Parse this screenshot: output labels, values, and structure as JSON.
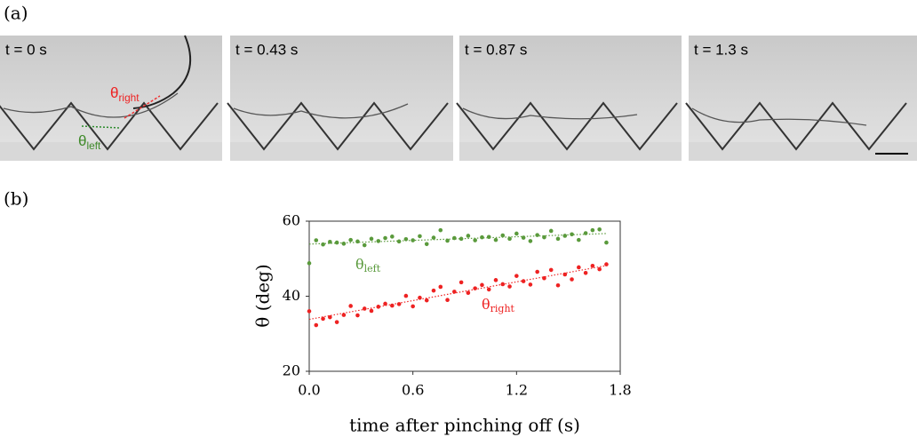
{
  "panel_a": {
    "label": "(a)",
    "frames": [
      "t = 0 s",
      "t = 0.43 s",
      "t = 0.87 s",
      "t = 1.3 s"
    ],
    "angle_right": {
      "symbol": "θ",
      "sub": "right"
    },
    "angle_left": {
      "symbol": "θ",
      "sub": "left"
    }
  },
  "panel_b": {
    "label": "(b)"
  },
  "chart_data": {
    "type": "scatter",
    "xlabel": "time after pinching off (s)",
    "ylabel": "θ (deg)",
    "xlim": [
      0,
      1.8
    ],
    "ylim": [
      20,
      60
    ],
    "xticks": [
      {
        "value": 0,
        "label": "0.0"
      },
      0.6,
      1.2,
      1.8
    ],
    "yticks": [
      20,
      40,
      60
    ],
    "trendline": true,
    "x": [
      0,
      0.04,
      0.08,
      0.12,
      0.16,
      0.2,
      0.24,
      0.28,
      0.32,
      0.36,
      0.4,
      0.44,
      0.48,
      0.52,
      0.56,
      0.6,
      0.64,
      0.68,
      0.72,
      0.76,
      0.8,
      0.84,
      0.88,
      0.92,
      0.96,
      1.0,
      1.04,
      1.08,
      1.12,
      1.16,
      1.2,
      1.24,
      1.28,
      1.32,
      1.36,
      1.4,
      1.44,
      1.48,
      1.52,
      1.56,
      1.6,
      1.64,
      1.68,
      1.72
    ],
    "series": [
      {
        "name": "θ",
        "sub": "left",
        "color": "#5a9a3c",
        "values": [
          48.8,
          54.9,
          53.8,
          54.5,
          54.3,
          54.0,
          55.0,
          54.6,
          53.6,
          55.3,
          54.7,
          55.5,
          55.9,
          54.6,
          55.2,
          54.9,
          56.0,
          53.9,
          55.6,
          57.6,
          54.8,
          55.5,
          55.3,
          56.1,
          54.9,
          55.7,
          55.8,
          55.0,
          56.2,
          55.3,
          56.7,
          55.6,
          54.7,
          56.3,
          55.7,
          57.4,
          55.3,
          56.1,
          56.5,
          55.0,
          56.8,
          57.6,
          57.8,
          54.3
        ]
      },
      {
        "name": "θ",
        "sub": "right",
        "color": "#ee2222",
        "values": [
          36.0,
          32.3,
          34.0,
          34.4,
          33.1,
          35.0,
          37.4,
          34.9,
          36.7,
          36.1,
          37.2,
          38.0,
          37.5,
          37.9,
          40.1,
          37.3,
          39.6,
          38.9,
          41.5,
          42.5,
          39.0,
          41.2,
          43.7,
          40.9,
          42.1,
          43.0,
          41.8,
          44.3,
          43.2,
          42.6,
          45.4,
          44.0,
          43.1,
          46.5,
          44.8,
          47.0,
          42.9,
          45.8,
          44.5,
          47.7,
          46.2,
          48.1,
          47.2,
          48.5
        ]
      }
    ]
  }
}
